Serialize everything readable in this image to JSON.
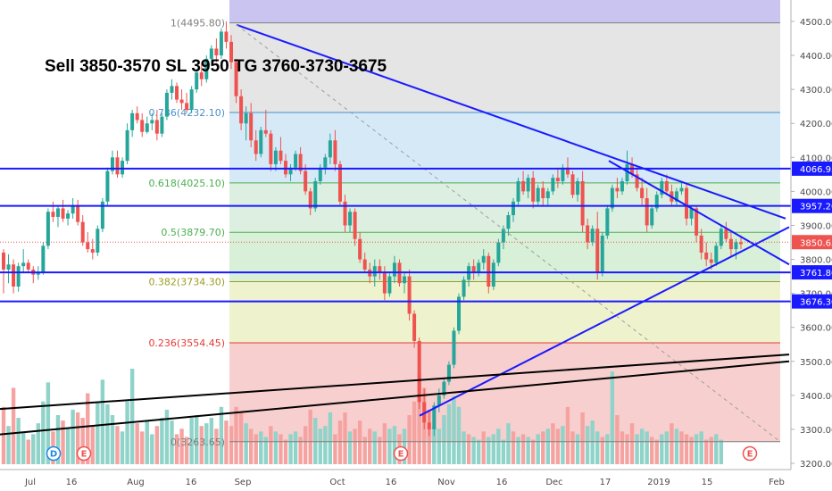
{
  "chart_data": {
    "type": "candlestick",
    "title": "Sell 3850-3570 SL 3950 TG 3760-3730-3675",
    "ylim": [
      3190,
      4540
    ],
    "y_ticks": [
      3200,
      3300,
      3400,
      3500,
      3600,
      3700,
      3800,
      3900,
      4000,
      4100,
      4200,
      4300,
      4400,
      4500
    ],
    "x_ticks": [
      "Jul",
      "16",
      "Aug",
      "16",
      "Sep",
      "Oct",
      "16",
      "Nov",
      "16",
      "Dec",
      "17",
      "2019",
      "15",
      "Feb"
    ],
    "last_price": "3850.65",
    "colors": {
      "up": "#26a69a",
      "down": "#ef5350",
      "up_volume": "#8fd3c9",
      "down_volume": "#f5a3a1",
      "trend_blue": "#1a1aff",
      "support_black": "#000000",
      "fib_0_786_band": "#d6e9f7",
      "fib_top_band": "#c9c5f0",
      "fib_grey_band": "#e5e5e5",
      "fib_green_band": "#d8efd8",
      "fib_yellow_band": "#eef3cd",
      "fib_red_band": "#f8cfcf"
    },
    "fib_levels": [
      {
        "label": "1(4495.80)",
        "value": 4495.8,
        "color": "#7f7f7f"
      },
      {
        "label": "0.786(4232.10)",
        "value": 4232.1,
        "color": "#4a90c8"
      },
      {
        "label": "0.618(4025.10)",
        "value": 4025.1,
        "color": "#4caf50"
      },
      {
        "label": "0.5(3879.70)",
        "value": 3879.7,
        "color": "#4caf50"
      },
      {
        "label": "0.382(3734.30)",
        "value": 3734.3,
        "color": "#9e9d24"
      },
      {
        "label": "0.236(3554.45)",
        "value": 3554.45,
        "color": "#e53935"
      },
      {
        "label": "0(3263.65)",
        "value": 3263.65,
        "color": "#7f7f7f"
      }
    ],
    "horizontal_levels": [
      {
        "label": "4066.95",
        "value": 4066.95
      },
      {
        "label": "3957.20",
        "value": 3957.2
      },
      {
        "label": "3761.80",
        "value": 3761.8
      },
      {
        "label": "3676.30",
        "value": 3676.3
      }
    ],
    "event_markers": [
      {
        "letter": "D",
        "kind": "dividend"
      },
      {
        "letter": "E",
        "kind": "earnings"
      },
      {
        "letter": "E",
        "kind": "earnings"
      },
      {
        "letter": "E",
        "kind": "earnings"
      }
    ],
    "candles": [
      [
        3820,
        3830,
        3700,
        3770
      ],
      [
        3770,
        3815,
        3730,
        3785
      ],
      [
        3785,
        3800,
        3700,
        3720
      ],
      [
        3720,
        3790,
        3705,
        3780
      ],
      [
        3780,
        3830,
        3760,
        3790
      ],
      [
        3790,
        3800,
        3760,
        3770
      ],
      [
        3770,
        3780,
        3730,
        3755
      ],
      [
        3755,
        3780,
        3740,
        3760
      ],
      [
        3760,
        3850,
        3755,
        3840
      ],
      [
        3840,
        3950,
        3830,
        3940
      ],
      [
        3940,
        3970,
        3910,
        3925
      ],
      [
        3925,
        3955,
        3895,
        3950
      ],
      [
        3950,
        3975,
        3910,
        3920
      ],
      [
        3920,
        3945,
        3900,
        3935
      ],
      [
        3935,
        3980,
        3920,
        3960
      ],
      [
        3960,
        3975,
        3900,
        3910
      ],
      [
        3910,
        3930,
        3840,
        3850
      ],
      [
        3850,
        3880,
        3820,
        3830
      ],
      [
        3830,
        3860,
        3800,
        3820
      ],
      [
        3820,
        3900,
        3810,
        3890
      ],
      [
        3890,
        3980,
        3880,
        3970
      ],
      [
        3970,
        4070,
        3960,
        4060
      ],
      [
        4060,
        4120,
        4050,
        4100
      ],
      [
        4100,
        4120,
        4040,
        4050
      ],
      [
        4050,
        4100,
        4040,
        4090
      ],
      [
        4090,
        4200,
        4080,
        4180
      ],
      [
        4180,
        4240,
        4160,
        4230
      ],
      [
        4230,
        4250,
        4200,
        4210
      ],
      [
        4210,
        4230,
        4160,
        4175
      ],
      [
        4175,
        4220,
        4170,
        4200
      ],
      [
        4200,
        4230,
        4180,
        4210
      ],
      [
        4210,
        4240,
        4150,
        4170
      ],
      [
        4170,
        4230,
        4160,
        4220
      ],
      [
        4220,
        4300,
        4210,
        4290
      ],
      [
        4290,
        4330,
        4270,
        4310
      ],
      [
        4310,
        4320,
        4260,
        4270
      ],
      [
        4270,
        4300,
        4240,
        4260
      ],
      [
        4260,
        4290,
        4230,
        4240
      ],
      [
        4240,
        4310,
        4230,
        4300
      ],
      [
        4300,
        4360,
        4290,
        4350
      ],
      [
        4350,
        4380,
        4310,
        4330
      ],
      [
        4330,
        4400,
        4320,
        4390
      ],
      [
        4390,
        4430,
        4370,
        4420
      ],
      [
        4420,
        4450,
        4380,
        4400
      ],
      [
        4400,
        4480,
        4390,
        4470
      ],
      [
        4470,
        4500,
        4420,
        4440
      ],
      [
        4440,
        4460,
        4360,
        4380
      ],
      [
        4380,
        4390,
        4260,
        4280
      ],
      [
        4280,
        4300,
        4180,
        4200
      ],
      [
        4200,
        4250,
        4150,
        4230
      ],
      [
        4230,
        4260,
        4130,
        4150
      ],
      [
        4150,
        4180,
        4090,
        4110
      ],
      [
        4110,
        4190,
        4100,
        4180
      ],
      [
        4180,
        4240,
        4160,
        4170
      ],
      [
        4170,
        4180,
        4060,
        4080
      ],
      [
        4080,
        4130,
        4060,
        4120
      ],
      [
        4120,
        4160,
        4080,
        4090
      ],
      [
        4090,
        4110,
        4040,
        4050
      ],
      [
        4050,
        4080,
        4030,
        4070
      ],
      [
        4070,
        4120,
        4060,
        4110
      ],
      [
        4110,
        4130,
        4050,
        4060
      ],
      [
        4060,
        4080,
        3990,
        4000
      ],
      [
        4000,
        4010,
        3930,
        3950
      ],
      [
        3950,
        4040,
        3940,
        4030
      ],
      [
        4030,
        4080,
        4020,
        4070
      ],
      [
        4070,
        4110,
        4050,
        4100
      ],
      [
        4100,
        4170,
        4080,
        4150
      ],
      [
        4150,
        4180,
        4060,
        4080
      ],
      [
        4080,
        4090,
        3960,
        3970
      ],
      [
        3970,
        3990,
        3880,
        3900
      ],
      [
        3900,
        3950,
        3880,
        3940
      ],
      [
        3940,
        3950,
        3840,
        3860
      ],
      [
        3860,
        3880,
        3790,
        3800
      ],
      [
        3800,
        3820,
        3760,
        3770
      ],
      [
        3770,
        3790,
        3730,
        3750
      ],
      [
        3750,
        3800,
        3720,
        3780
      ],
      [
        3780,
        3800,
        3740,
        3760
      ],
      [
        3760,
        3780,
        3680,
        3700
      ],
      [
        3700,
        3760,
        3690,
        3750
      ],
      [
        3750,
        3810,
        3730,
        3790
      ],
      [
        3790,
        3800,
        3720,
        3730
      ],
      [
        3730,
        3760,
        3700,
        3750
      ],
      [
        3750,
        3770,
        3620,
        3640
      ],
      [
        3640,
        3650,
        3540,
        3560
      ],
      [
        3560,
        3570,
        3360,
        3380
      ],
      [
        3380,
        3420,
        3300,
        3320
      ],
      [
        3320,
        3350,
        3280,
        3300
      ],
      [
        3300,
        3380,
        3280,
        3370
      ],
      [
        3370,
        3420,
        3350,
        3400
      ],
      [
        3400,
        3450,
        3390,
        3440
      ],
      [
        3440,
        3500,
        3430,
        3490
      ],
      [
        3490,
        3600,
        3480,
        3590
      ],
      [
        3590,
        3700,
        3580,
        3690
      ],
      [
        3690,
        3750,
        3680,
        3740
      ],
      [
        3740,
        3790,
        3720,
        3780
      ],
      [
        3780,
        3800,
        3740,
        3760
      ],
      [
        3760,
        3800,
        3750,
        3790
      ],
      [
        3790,
        3830,
        3770,
        3810
      ],
      [
        3810,
        3820,
        3700,
        3720
      ],
      [
        3720,
        3800,
        3710,
        3790
      ],
      [
        3790,
        3860,
        3780,
        3850
      ],
      [
        3850,
        3900,
        3830,
        3890
      ],
      [
        3890,
        3940,
        3870,
        3930
      ],
      [
        3930,
        3980,
        3910,
        3970
      ],
      [
        3970,
        4040,
        3960,
        4030
      ],
      [
        4030,
        4060,
        3990,
        4000
      ],
      [
        4000,
        4050,
        3980,
        4040
      ],
      [
        4040,
        4060,
        3950,
        3970
      ],
      [
        3970,
        4020,
        3960,
        4010
      ],
      [
        4010,
        4030,
        3960,
        3980
      ],
      [
        3980,
        4010,
        3960,
        4000
      ],
      [
        4000,
        4050,
        3990,
        4040
      ],
      [
        4040,
        4070,
        4010,
        4030
      ],
      [
        4030,
        4080,
        4020,
        4070
      ],
      [
        4070,
        4100,
        4040,
        4050
      ],
      [
        4050,
        4060,
        3980,
        3990
      ],
      [
        3990,
        4040,
        3970,
        4030
      ],
      [
        4030,
        4060,
        3880,
        3900
      ],
      [
        3900,
        3920,
        3830,
        3850
      ],
      [
        3850,
        3900,
        3840,
        3890
      ],
      [
        3890,
        3940,
        3740,
        3760
      ],
      [
        3760,
        3880,
        3750,
        3870
      ],
      [
        3870,
        3960,
        3860,
        3950
      ],
      [
        3950,
        4020,
        3940,
        4010
      ],
      [
        4010,
        4040,
        3980,
        4000
      ],
      [
        4000,
        4040,
        3990,
        4030
      ],
      [
        4030,
        4120,
        4020,
        4080
      ],
      [
        4080,
        4100,
        4040,
        4050
      ],
      [
        4050,
        4070,
        4000,
        4010
      ],
      [
        4010,
        4040,
        3960,
        3980
      ],
      [
        3980,
        4010,
        3880,
        3900
      ],
      [
        3900,
        3960,
        3890,
        3950
      ],
      [
        3950,
        4000,
        3940,
        3990
      ],
      [
        3990,
        4040,
        3980,
        4030
      ],
      [
        4030,
        4050,
        3990,
        4000
      ],
      [
        4000,
        4020,
        3960,
        3970
      ],
      [
        3970,
        4010,
        3960,
        4000
      ],
      [
        4000,
        4030,
        3990,
        4010
      ],
      [
        4010,
        4020,
        3900,
        3920
      ],
      [
        3920,
        3960,
        3900,
        3950
      ],
      [
        3950,
        3960,
        3850,
        3870
      ],
      [
        3870,
        3890,
        3800,
        3820
      ],
      [
        3820,
        3850,
        3780,
        3800
      ],
      [
        3800,
        3820,
        3770,
        3790
      ],
      [
        3790,
        3850,
        3780,
        3840
      ],
      [
        3840,
        3900,
        3830,
        3890
      ],
      [
        3890,
        3910,
        3850,
        3860
      ],
      [
        3860,
        3880,
        3810,
        3830
      ],
      [
        3830,
        3860,
        3800,
        3850
      ],
      [
        3850,
        3870,
        3830,
        3845
      ]
    ],
    "volume": [
      [
        210,
        0
      ],
      [
        140,
        1
      ],
      [
        280,
        0
      ],
      [
        170,
        1
      ],
      [
        120,
        1
      ],
      [
        90,
        0
      ],
      [
        110,
        1
      ],
      [
        150,
        1
      ],
      [
        230,
        1
      ],
      [
        300,
        1
      ],
      [
        120,
        0
      ],
      [
        180,
        1
      ],
      [
        160,
        0
      ],
      [
        130,
        1
      ],
      [
        200,
        1
      ],
      [
        190,
        0
      ],
      [
        170,
        0
      ],
      [
        260,
        0
      ],
      [
        140,
        0
      ],
      [
        230,
        1
      ],
      [
        310,
        1
      ],
      [
        220,
        1
      ],
      [
        180,
        1
      ],
      [
        140,
        0
      ],
      [
        120,
        1
      ],
      [
        230,
        1
      ],
      [
        350,
        1
      ],
      [
        150,
        0
      ],
      [
        120,
        0
      ],
      [
        160,
        1
      ],
      [
        110,
        1
      ],
      [
        140,
        0
      ],
      [
        170,
        1
      ],
      [
        200,
        1
      ],
      [
        160,
        1
      ],
      [
        110,
        0
      ],
      [
        130,
        0
      ],
      [
        100,
        0
      ],
      [
        170,
        1
      ],
      [
        180,
        1
      ],
      [
        140,
        0
      ],
      [
        150,
        1
      ],
      [
        170,
        1
      ],
      [
        130,
        0
      ],
      [
        210,
        1
      ],
      [
        160,
        0
      ],
      [
        140,
        0
      ],
      [
        210,
        0
      ],
      [
        190,
        0
      ],
      [
        150,
        1
      ],
      [
        130,
        0
      ],
      [
        110,
        0
      ],
      [
        120,
        1
      ],
      [
        100,
        1
      ],
      [
        140,
        0
      ],
      [
        120,
        1
      ],
      [
        110,
        0
      ],
      [
        90,
        0
      ],
      [
        110,
        1
      ],
      [
        120,
        1
      ],
      [
        100,
        0
      ],
      [
        140,
        0
      ],
      [
        200,
        0
      ],
      [
        170,
        1
      ],
      [
        130,
        1
      ],
      [
        140,
        1
      ],
      [
        190,
        1
      ],
      [
        110,
        0
      ],
      [
        160,
        0
      ],
      [
        190,
        0
      ],
      [
        120,
        1
      ],
      [
        130,
        0
      ],
      [
        160,
        0
      ],
      [
        100,
        0
      ],
      [
        130,
        0
      ],
      [
        120,
        1
      ],
      [
        100,
        0
      ],
      [
        150,
        0
      ],
      [
        130,
        1
      ],
      [
        140,
        1
      ],
      [
        110,
        0
      ],
      [
        130,
        1
      ],
      [
        180,
        0
      ],
      [
        230,
        0
      ],
      [
        330,
        0
      ],
      [
        280,
        0
      ],
      [
        200,
        0
      ],
      [
        140,
        1
      ],
      [
        130,
        1
      ],
      [
        180,
        1
      ],
      [
        220,
        1
      ],
      [
        250,
        1
      ],
      [
        210,
        1
      ],
      [
        120,
        1
      ],
      [
        110,
        0
      ],
      [
        100,
        1
      ],
      [
        90,
        1
      ],
      [
        120,
        0
      ],
      [
        100,
        1
      ],
      [
        110,
        1
      ],
      [
        130,
        1
      ],
      [
        90,
        1
      ],
      [
        150,
        1
      ],
      [
        120,
        0
      ],
      [
        100,
        1
      ],
      [
        110,
        0
      ],
      [
        100,
        1
      ],
      [
        90,
        0
      ],
      [
        110,
        1
      ],
      [
        120,
        0
      ],
      [
        130,
        1
      ],
      [
        150,
        0
      ],
      [
        130,
        0
      ],
      [
        140,
        1
      ],
      [
        210,
        0
      ],
      [
        120,
        0
      ],
      [
        110,
        1
      ],
      [
        190,
        0
      ],
      [
        140,
        1
      ],
      [
        160,
        1
      ],
      [
        120,
        1
      ],
      [
        100,
        0
      ],
      [
        110,
        1
      ],
      [
        340,
        1
      ],
      [
        180,
        0
      ],
      [
        120,
        0
      ],
      [
        110,
        0
      ],
      [
        150,
        0
      ],
      [
        110,
        1
      ],
      [
        130,
        1
      ],
      [
        120,
        1
      ],
      [
        100,
        0
      ],
      [
        90,
        0
      ],
      [
        110,
        1
      ],
      [
        120,
        1
      ],
      [
        150,
        0
      ],
      [
        130,
        1
      ],
      [
        120,
        0
      ],
      [
        110,
        0
      ],
      [
        100,
        0
      ],
      [
        110,
        1
      ],
      [
        120,
        1
      ],
      [
        90,
        0
      ],
      [
        100,
        0
      ],
      [
        110,
        1
      ],
      [
        90,
        1
      ]
    ]
  }
}
